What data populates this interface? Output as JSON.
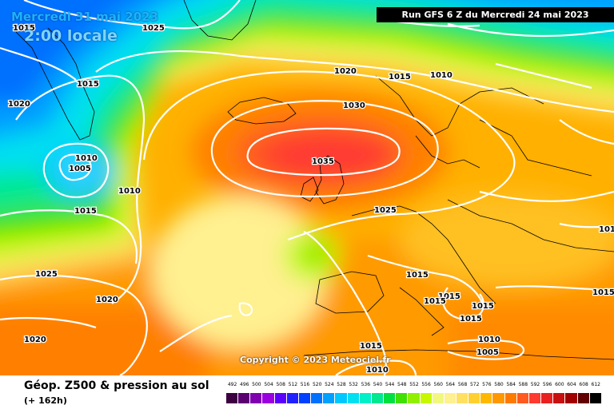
{
  "header": {
    "date_text": "Mercredi 31 mai 2023",
    "time_text": "2:00 locale",
    "run_text": "Run GFS 6 Z du Mercredi 24 mai 2023"
  },
  "copyright": "Copyright © 2023 Meteociel.fr",
  "footer": {
    "variable_text": "Géop. Z500 & pression au sol",
    "lead_text": "(+ 162h)"
  },
  "legend": {
    "values": [
      "492",
      "496",
      "500",
      "504",
      "508",
      "512",
      "516",
      "520",
      "524",
      "528",
      "532",
      "536",
      "540",
      "544",
      "548",
      "552",
      "556",
      "560",
      "564",
      "568",
      "572",
      "576",
      "580",
      "584",
      "588",
      "592",
      "596",
      "600",
      "604",
      "608",
      "612"
    ],
    "colors": [
      "#3c0040",
      "#5a0070",
      "#8000b0",
      "#9a00e0",
      "#5a00ff",
      "#2020ff",
      "#0040ff",
      "#0070ff",
      "#00a0ff",
      "#00c8ff",
      "#00e0f0",
      "#00f0c8",
      "#00e890",
      "#00e040",
      "#40e000",
      "#90f000",
      "#c8f800",
      "#f0f880",
      "#fff090",
      "#ffe060",
      "#ffd030",
      "#ffb800",
      "#ff9800",
      "#ff7a00",
      "#ff5a20",
      "#ff3a30",
      "#e82020",
      "#c81010",
      "#a00000",
      "#600000",
      "#000000"
    ]
  },
  "isobars": [
    {
      "id": "1015-greenland",
      "label": "1015"
    },
    {
      "id": "1025-north",
      "label": "1025"
    },
    {
      "id": "1015-west",
      "label": "1015"
    },
    {
      "id": "1020-west",
      "label": "1020"
    },
    {
      "id": "1020-north",
      "label": "1020"
    },
    {
      "id": "1015-north",
      "label": "1015"
    },
    {
      "id": "1010-north",
      "label": "1010"
    },
    {
      "id": "1030-center",
      "label": "1030"
    },
    {
      "id": "1035-high",
      "label": "1035"
    },
    {
      "id": "1010-low",
      "label": "1010"
    },
    {
      "id": "1005-low",
      "label": "1005"
    },
    {
      "id": "1010-south",
      "label": "1010"
    },
    {
      "id": "1015-mid",
      "label": "1015"
    },
    {
      "id": "1025-europe",
      "label": "1025"
    },
    {
      "id": "1025-southwest",
      "label": "1025"
    },
    {
      "id": "1020-southwest",
      "label": "1020"
    },
    {
      "id": "1020-corner",
      "label": "1020"
    },
    {
      "id": "1015-france",
      "label": "1015"
    },
    {
      "id": "1015-italy-a",
      "label": "1015"
    },
    {
      "id": "1015-italy-b",
      "label": "1015"
    },
    {
      "id": "1015-balkans-a",
      "label": "1015"
    },
    {
      "id": "1015-balkans-b",
      "label": "1015"
    },
    {
      "id": "1015-east",
      "label": "1015"
    },
    {
      "id": "1015-edge",
      "label": "101"
    },
    {
      "id": "1010-med",
      "label": "1010"
    },
    {
      "id": "1005-med",
      "label": "1005"
    },
    {
      "id": "1015-med",
      "label": "1015"
    },
    {
      "id": "1010-africa",
      "label": "1010"
    }
  ]
}
